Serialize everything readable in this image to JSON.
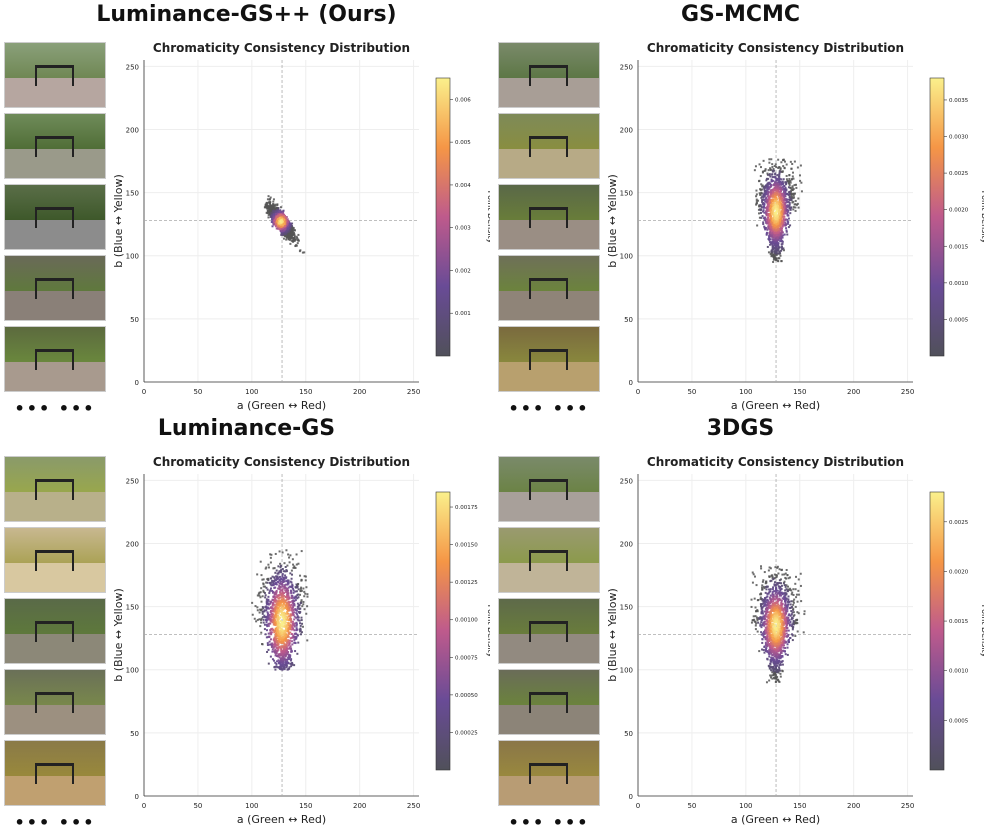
{
  "panels": [
    {
      "title": "Luminance-GS++ (Ours)",
      "ellipsis": "••• •••",
      "thumb_colors": [
        [
          "#8aa07a",
          "#6d8550",
          "#b6a6a0"
        ],
        [
          "#6f8b5a",
          "#4d6b33",
          "#9a9a8a"
        ],
        [
          "#5a6e48",
          "#3b5627",
          "#8c8c8c"
        ],
        [
          "#6a6a58",
          "#5e7a3a",
          "#8a8078"
        ],
        [
          "#5c6a3e",
          "#6b8a3d",
          "#a89a8e"
        ]
      ],
      "chart_data": {
        "type": "heatmap",
        "title": "Chromaticity Consistency Distribution",
        "xlabel": "a (Green ↔ Red)",
        "ylabel": "b (Blue ↔ Yellow)",
        "xlim": [
          0,
          255
        ],
        "ylim": [
          0,
          255
        ],
        "xticks": [
          0,
          50,
          100,
          150,
          200,
          250
        ],
        "yticks": [
          0,
          50,
          100,
          150,
          200,
          250
        ],
        "reference_lines": {
          "a": 128,
          "b": 128
        },
        "distribution": {
          "center_a": 127,
          "center_b": 127,
          "spread_a": 6,
          "spread_b": 6,
          "shape": "tilted-ellipse",
          "a_range": [
            112,
            150
          ],
          "b_range": [
            100,
            155
          ]
        },
        "colorbar": {
          "label": "Point Density",
          "ticks": [
            "0.006",
            "0.005",
            "0.004",
            "0.003",
            "0.002",
            "0.001"
          ],
          "max": 0.0065
        }
      }
    },
    {
      "title": "GS-MCMC",
      "ellipsis": "••• •••",
      "thumb_colors": [
        [
          "#7a8a6a",
          "#5a7542",
          "#a89e96"
        ],
        [
          "#7e8a58",
          "#8a8e3e",
          "#b7aa86"
        ],
        [
          "#5a6848",
          "#6a7f38",
          "#9a8e84"
        ],
        [
          "#6f7058",
          "#6b853a",
          "#8f8478"
        ],
        [
          "#7a6a3e",
          "#8a8a3d",
          "#b8a06e"
        ]
      ],
      "chart_data": {
        "type": "heatmap",
        "title": "Chromaticity Consistency Distribution",
        "xlabel": "a (Green ↔ Red)",
        "ylabel": "b (Blue ↔ Yellow)",
        "xlim": [
          0,
          255
        ],
        "ylim": [
          0,
          255
        ],
        "xticks": [
          0,
          50,
          100,
          150,
          200,
          250
        ],
        "yticks": [
          0,
          50,
          100,
          150,
          200,
          250
        ],
        "reference_lines": {
          "a": 128,
          "b": 128
        },
        "distribution": {
          "center_a": 128,
          "center_b": 135,
          "spread_a": 8,
          "spread_b": 18,
          "shape": "teardrop",
          "a_range": [
            108,
            155
          ],
          "b_range": [
            95,
            178
          ]
        },
        "colorbar": {
          "label": "Point Density",
          "ticks": [
            "0.0035",
            "0.0030",
            "0.0025",
            "0.0020",
            "0.0015",
            "0.0010",
            "0.0005"
          ],
          "max": 0.0038
        }
      }
    },
    {
      "title": "Luminance-GS",
      "ellipsis": "••• •••",
      "thumb_colors": [
        [
          "#8a9a6a",
          "#9aa84a",
          "#b8b08a"
        ],
        [
          "#c8b890",
          "#a8a050",
          "#d8c8a0"
        ],
        [
          "#5a6a48",
          "#5e7a3a",
          "#8c8878"
        ],
        [
          "#6a7058",
          "#7a8a4a",
          "#9c9080"
        ],
        [
          "#8a7a48",
          "#9a8a3a",
          "#c0a070"
        ]
      ],
      "chart_data": {
        "type": "heatmap",
        "title": "Chromaticity Consistency Distribution",
        "xlabel": "a (Green ↔ Red)",
        "ylabel": "b (Blue ↔ Yellow)",
        "xlim": [
          0,
          255
        ],
        "ylim": [
          0,
          255
        ],
        "xticks": [
          0,
          50,
          100,
          150,
          200,
          250
        ],
        "yticks": [
          0,
          50,
          100,
          150,
          200,
          250
        ],
        "reference_lines": {
          "a": 128,
          "b": 128
        },
        "distribution": {
          "center_a": 128,
          "center_b": 138,
          "spread_a": 10,
          "spread_b": 24,
          "shape": "teardrop",
          "a_range": [
            100,
            152
          ],
          "b_range": [
            100,
            195
          ]
        },
        "colorbar": {
          "label": "Point Density",
          "ticks": [
            "0.00175",
            "0.00150",
            "0.00125",
            "0.00100",
            "0.00075",
            "0.00050",
            "0.00025"
          ],
          "max": 0.00185
        }
      }
    },
    {
      "title": "3DGS",
      "ellipsis": "••• •••",
      "thumb_colors": [
        [
          "#7a8a6a",
          "#6a8242",
          "#a8a09a"
        ],
        [
          "#9a9a70",
          "#8a9a48",
          "#c0b498"
        ],
        [
          "#5e6a4a",
          "#6a7e3a",
          "#928a80"
        ],
        [
          "#6a6c58",
          "#6b853a",
          "#8c8478"
        ],
        [
          "#8a7648",
          "#9a8a3d",
          "#b89c74"
        ]
      ],
      "chart_data": {
        "type": "heatmap",
        "title": "Chromaticity Consistency Distribution",
        "xlabel": "a (Green ↔ Red)",
        "ylabel": "b (Blue ↔ Yellow)",
        "xlim": [
          0,
          255
        ],
        "ylim": [
          0,
          255
        ],
        "xticks": [
          0,
          50,
          100,
          150,
          200,
          250
        ],
        "yticks": [
          0,
          50,
          100,
          150,
          200,
          250
        ],
        "reference_lines": {
          "a": 128,
          "b": 128
        },
        "distribution": {
          "center_a": 128,
          "center_b": 135,
          "spread_a": 9,
          "spread_b": 20,
          "shape": "teardrop",
          "a_range": [
            105,
            158
          ],
          "b_range": [
            90,
            182
          ]
        },
        "colorbar": {
          "label": "Point Density",
          "ticks": [
            "0.0025",
            "0.0020",
            "0.0015",
            "0.0010",
            "0.0005"
          ],
          "max": 0.0028
        }
      }
    }
  ]
}
